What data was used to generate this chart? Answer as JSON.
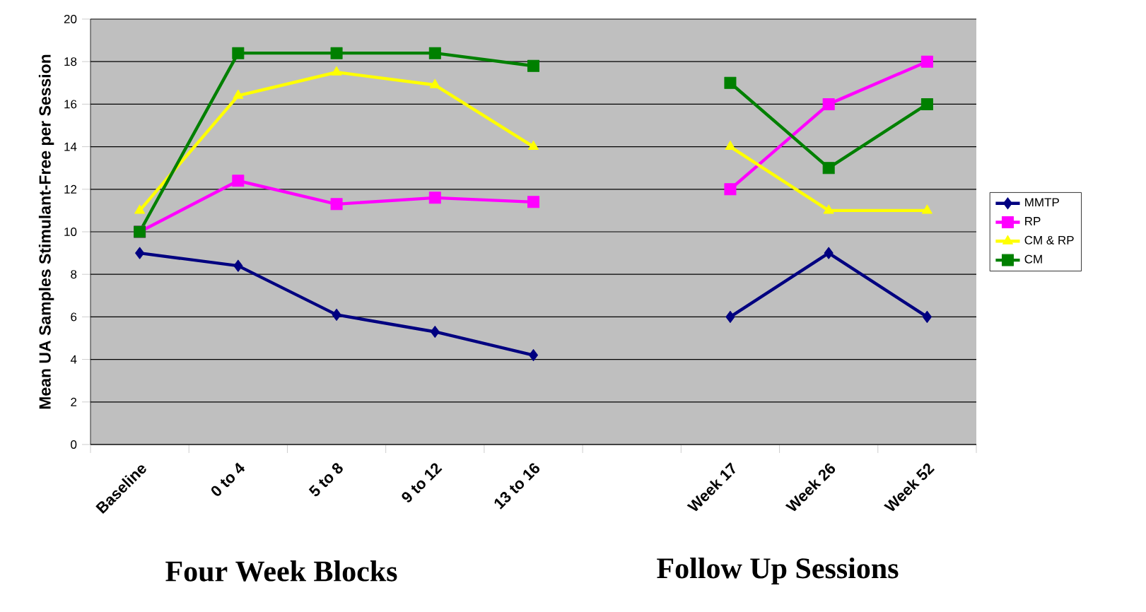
{
  "chart_data": {
    "type": "line",
    "ylabel": "Mean UA Samples Stimulant-Free per Session",
    "categories": [
      "Baseline",
      "0 to 4",
      "5 to 8",
      "9 to 12",
      "13 to 16",
      null,
      "Week 17",
      "Week 26",
      "Week 52"
    ],
    "series": [
      {
        "name": "MMTP",
        "color": "#000080",
        "marker": "diamond",
        "values": [
          9,
          8.4,
          6.1,
          5.3,
          4.2,
          null,
          6,
          9,
          6
        ]
      },
      {
        "name": "RP",
        "color": "#ff00ff",
        "marker": "square",
        "values": [
          10,
          12.4,
          11.3,
          11.6,
          11.4,
          null,
          12,
          16,
          18
        ]
      },
      {
        "name": "CM & RP",
        "color": "#ffff00",
        "marker": "triangle",
        "values": [
          11,
          16.4,
          17.5,
          16.9,
          14,
          null,
          14,
          11,
          11
        ]
      },
      {
        "name": "CM",
        "color": "#008000",
        "marker": "square",
        "values": [
          10,
          18.4,
          18.4,
          18.4,
          17.8,
          null,
          17,
          13,
          16
        ]
      }
    ],
    "ylim": [
      0,
      20
    ],
    "yticks": [
      0,
      2,
      4,
      6,
      8,
      10,
      12,
      14,
      16,
      18,
      20
    ],
    "grid": "y",
    "legend": "right",
    "annotations": [
      "Four Week Blocks",
      "Follow Up Sessions"
    ]
  }
}
